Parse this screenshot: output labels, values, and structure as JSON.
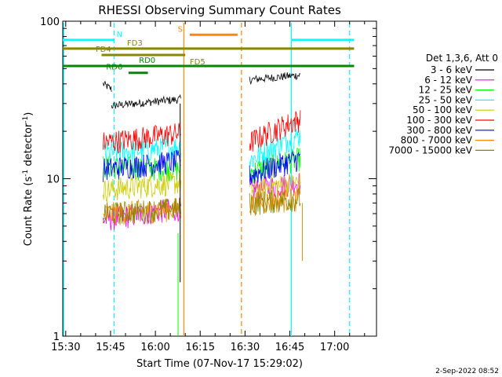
{
  "chart_data": {
    "type": "line",
    "title": "RHESSI Observing Summary Count Rates",
    "xlabel": "Start Time (07-Nov-17 15:29:02)",
    "ylabel_main": "Count Rate (s",
    "ylabel_sup1": "-1",
    "ylabel_mid": " detector",
    "ylabel_sup2": "-1",
    "ylabel_end": ")",
    "footer": "2-Sep-2022 08:52",
    "y_scale": "log",
    "ylim": [
      1,
      100
    ],
    "xlim_minutes": [
      0,
      105
    ],
    "x_ticks": [
      {
        "minute": 1,
        "label": "15:30"
      },
      {
        "minute": 16,
        "label": "15:45"
      },
      {
        "minute": 31,
        "label": "16:00"
      },
      {
        "minute": 46,
        "label": "16:15"
      },
      {
        "minute": 61,
        "label": "16:30"
      },
      {
        "minute": 76,
        "label": "16:45"
      },
      {
        "minute": 91,
        "label": "17:00"
      }
    ],
    "y_ticks": [
      {
        "value": 1,
        "label": "1"
      },
      {
        "value": 10,
        "label": "10"
      },
      {
        "value": 100,
        "label": "100"
      }
    ],
    "legend_title": "Det 1,3,6, Att 0",
    "series": [
      {
        "name": "3 - 6 keV",
        "color": "#000000",
        "seg1_start": 29,
        "seg1_end": 32,
        "seg2": 43.5,
        "seg3_start": 42.5,
        "seg3_end": 45.5
      },
      {
        "name": "6 - 12 keV",
        "color": "#ff00ff",
        "seg1_start": 5.5,
        "seg1_end": 6.5,
        "seg2": 8.5,
        "seg3_start": 8.5,
        "seg3_end": 9.5
      },
      {
        "name": "12 - 25 keV",
        "color": "#00ff00",
        "seg1_start": 12,
        "seg1_end": 11.5,
        "seg2": 11.5,
        "seg3_start": 11,
        "seg3_end": 13.5
      },
      {
        "name": "25 - 50 keV",
        "color": "#00ffff",
        "seg1_start": 14.5,
        "seg1_end": 16,
        "seg2": 13,
        "seg3_start": 13,
        "seg3_end": 19
      },
      {
        "name": "50 - 100 keV",
        "color": "#cccc00",
        "seg1_start": 8.5,
        "seg1_end": 9.5,
        "seg2": 8.5,
        "seg3_start": 8.5,
        "seg3_end": 9.5
      },
      {
        "name": "100 - 300 keV",
        "color": "#ff0000",
        "seg1_start": 17,
        "seg1_end": 19.5,
        "seg2": 17,
        "seg3_start": 17,
        "seg3_end": 24
      },
      {
        "name": "300 - 800 keV",
        "color": "#0000ff",
        "seg1_start": 11.5,
        "seg1_end": 13,
        "seg2": 10.5,
        "seg3_start": 10.5,
        "seg3_end": 13.5
      },
      {
        "name": "800 - 7000 keV",
        "color": "#ff8800",
        "seg1_start": 6,
        "seg1_end": 6.5,
        "seg2": 7,
        "seg3_start": 7,
        "seg3_end": 7.5
      },
      {
        "name": "7000 - 15000 keV",
        "color": "#888800",
        "seg1_start": 6,
        "seg1_end": 6.5,
        "seg2": 7,
        "seg3_start": 7,
        "seg3_end": 7.5
      }
    ],
    "segments_minutes": [
      [
        13.5,
        16.3
      ],
      [
        16.3,
        39.5
      ],
      [
        62.5,
        79.5
      ]
    ],
    "vertical_lines": [
      {
        "minute": 0.3,
        "color": "#00ffff",
        "style": "solid"
      },
      {
        "minute": 17.2,
        "color": "#00ffff",
        "style": "dashed"
      },
      {
        "minute": 40.5,
        "color": "#ff8800",
        "style": "solid"
      },
      {
        "minute": 59.8,
        "color": "#ff8800",
        "style": "dashed"
      },
      {
        "minute": 76.5,
        "color": "#00ffff",
        "solid": true,
        "style": "solid"
      },
      {
        "minute": 96.0,
        "color": "#00ffff",
        "style": "dashed"
      }
    ],
    "flag_bars": [
      {
        "label": "N",
        "color": "#00ffff",
        "y": 76,
        "start": 0,
        "end": 17.2,
        "label_min": 18.0,
        "label_above": true
      },
      {
        "label": "",
        "color": "#00ffff",
        "y": 76,
        "start": 76.5,
        "end": 97.5
      },
      {
        "label": "S",
        "color": "#ff8800",
        "y": 82,
        "start": 42.5,
        "end": 58.5,
        "label_min": 38.5,
        "label_above": true
      },
      {
        "label": "FD3",
        "color": "#888800",
        "y": 67,
        "start": 0,
        "end": 97.5,
        "label_min": 21.5,
        "label_above": true
      },
      {
        "label": "FD4",
        "color": "#888800",
        "y": 61,
        "start": 13,
        "end": 41,
        "label_min": 11.0,
        "label_above": true
      },
      {
        "label": "FD5",
        "color": "#888800",
        "y": 61,
        "start": 40.5,
        "end": 40.5,
        "label_min": 42.5,
        "label_above": false
      },
      {
        "label": "RD0",
        "color": "#008800",
        "y": 52,
        "start": 0,
        "end": 97.5,
        "label_min": 25.5,
        "label_above": true
      },
      {
        "label": "RD6",
        "color": "#008800",
        "y": 47,
        "start": 22.0,
        "end": 28.5,
        "label_min": 14.5,
        "label_above": true
      }
    ]
  }
}
